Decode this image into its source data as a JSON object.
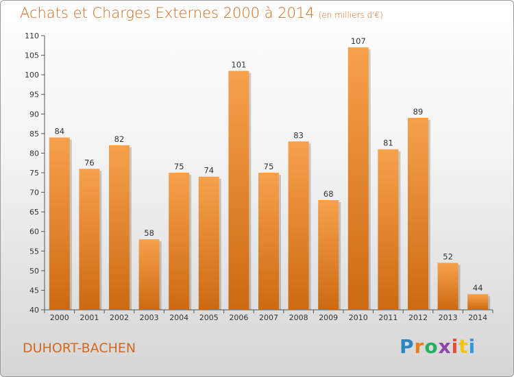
{
  "header": {
    "title": "Achats et Charges Externes 2000 à 2014",
    "subtitle": "(en milliers d'€)"
  },
  "footer": {
    "place": "DUHORT-BACHEN",
    "logo": "Proxiti"
  },
  "colors": {
    "bar_top": "#f7a14c",
    "bar_bottom": "#cc6a12",
    "title": "#d2691e",
    "logo": [
      "#2e86c1",
      "#e67e22",
      "#27ae60",
      "#8e44ad",
      "#e74c3c",
      "#f1c40f",
      "#3498db"
    ]
  },
  "chart_data": {
    "type": "bar",
    "title": "Achats et Charges Externes 2000 à 2014",
    "subtitle": "(en milliers d'€)",
    "categories": [
      "2000",
      "2001",
      "2002",
      "2003",
      "2004",
      "2005",
      "2006",
      "2007",
      "2008",
      "2009",
      "2010",
      "2011",
      "2012",
      "2013",
      "2014"
    ],
    "values": [
      84,
      76,
      82,
      58,
      75,
      74,
      101,
      75,
      83,
      68,
      107,
      81,
      89,
      52,
      44
    ],
    "ylim": [
      40,
      110
    ],
    "yticks": [
      40,
      45,
      50,
      55,
      60,
      65,
      70,
      75,
      80,
      85,
      90,
      95,
      100,
      105,
      110
    ],
    "grid": false,
    "data_labels": true
  }
}
